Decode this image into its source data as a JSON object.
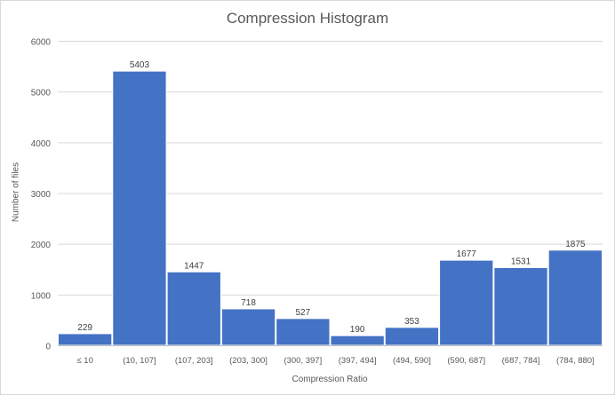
{
  "chart_data": {
    "type": "bar",
    "title": "Compression Histogram",
    "xlabel": "Compression Ratio",
    "ylabel": "Number of files",
    "categories": [
      "≤ 10",
      "(10, 107]",
      "(107, 203]",
      "(203, 300]",
      "(300, 397]",
      "(397, 494]",
      "(494, 590]",
      "(590, 687]",
      "(687, 784]",
      "(784, 880]"
    ],
    "values": [
      229,
      5403,
      1447,
      718,
      527,
      190,
      353,
      1677,
      1531,
      1875
    ],
    "ylim": [
      0,
      6000
    ],
    "yticks": [
      0,
      1000,
      2000,
      3000,
      4000,
      5000,
      6000
    ],
    "grid": true,
    "legend": "none",
    "bar_color": "#4472C4",
    "grid_color": "#d9d9d9",
    "text_color": "#595959"
  }
}
